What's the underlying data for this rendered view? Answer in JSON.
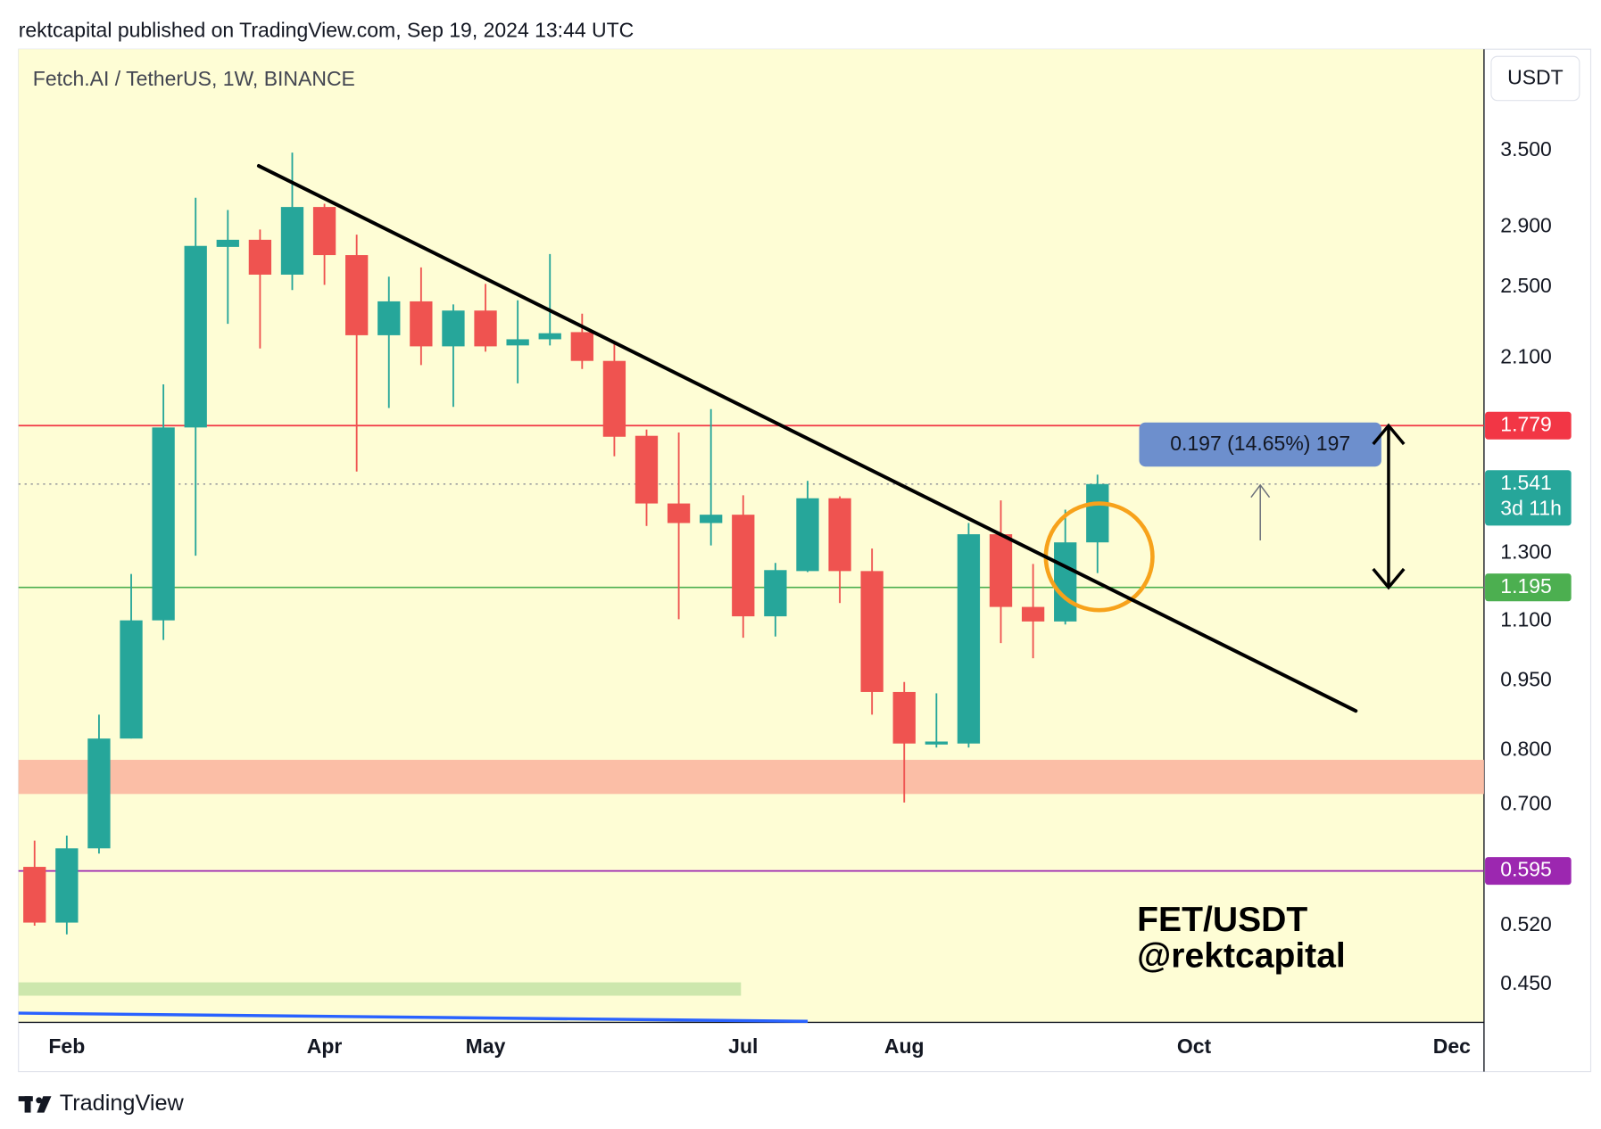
{
  "header": {
    "published": "rektcapital published on TradingView.com, Sep 19, 2024 13:44 UTC",
    "currency_button": "USDT",
    "brand": "TradingView"
  },
  "chart_data": {
    "type": "candlestick",
    "title": "Fetch.AI / TetherUS, 1W, BINANCE",
    "open": [
      0.601,
      0.524,
      0.629,
      0.824,
      1.102,
      1.771,
      2.761,
      2.81,
      2.579,
      3.046,
      2.706,
      2.222,
      2.415,
      2.162,
      2.361,
      2.167,
      2.2,
      2.239,
      2.086,
      1.735,
      1.469,
      1.4,
      1.429,
      1.113,
      1.244,
      1.488,
      1.244,
      0.924,
      0.812,
      0.814,
      1.362,
      1.139,
      1.099,
      1.335
    ],
    "high": [
      0.641,
      0.649,
      0.874,
      1.235,
      1.969,
      3.116,
      3.023,
      2.882,
      3.482,
      3.07,
      2.846,
      2.566,
      2.625,
      2.397,
      2.521,
      2.421,
      2.713,
      2.343,
      2.183,
      1.762,
      1.749,
      1.853,
      1.499,
      1.269,
      1.553,
      1.495,
      1.315,
      0.947,
      0.921,
      1.4,
      1.48,
      1.266,
      1.447,
      1.577
    ],
    "low": [
      0.52,
      0.509,
      0.621,
      0.824,
      1.05,
      1.292,
      2.285,
      2.151,
      2.483,
      2.515,
      1.589,
      1.858,
      2.065,
      1.863,
      2.134,
      1.974,
      2.167,
      2.045,
      1.65,
      1.39,
      1.105,
      1.325,
      1.056,
      1.059,
      1.241,
      1.15,
      0.874,
      0.704,
      0.806,
      0.806,
      1.042,
      1.004,
      1.091,
      1.238
    ],
    "close": [
      0.524,
      0.629,
      0.824,
      1.102,
      1.771,
      2.768,
      2.81,
      2.579,
      3.046,
      2.706,
      2.222,
      2.415,
      2.162,
      2.361,
      2.162,
      2.2,
      2.233,
      2.086,
      1.731,
      1.469,
      1.4,
      1.429,
      1.113,
      1.247,
      1.488,
      1.244,
      0.924,
      0.814,
      0.818,
      1.362,
      1.139,
      1.099,
      1.335,
      1.541
    ],
    "up_color": "#26a69a",
    "down_color": "#ef5350",
    "log_scale": true,
    "xlim": [
      -0.5,
      45
    ],
    "ylim": [
      0.41,
      4.49
    ],
    "xticks": [
      {
        "value": 1,
        "label": "Feb"
      },
      {
        "value": 9,
        "label": "Apr"
      },
      {
        "value": 14,
        "label": "May"
      },
      {
        "value": 22,
        "label": "Jul"
      },
      {
        "value": 27,
        "label": "Aug"
      },
      {
        "value": 36,
        "label": "Oct"
      },
      {
        "value": 44,
        "label": "Dec"
      }
    ],
    "yticks": [
      {
        "value": 3.5,
        "label": "3.500"
      },
      {
        "value": 2.9,
        "label": "2.900"
      },
      {
        "value": 2.5,
        "label": "2.500"
      },
      {
        "value": 2.1,
        "label": "2.100"
      },
      {
        "value": 1.3,
        "label": "1.300"
      },
      {
        "value": 1.1,
        "label": "1.100"
      },
      {
        "value": 0.95,
        "label": "0.950"
      },
      {
        "value": 0.8,
        "label": "0.800"
      },
      {
        "value": 0.7,
        "label": "0.700"
      },
      {
        "value": 0.52,
        "label": "0.520"
      },
      {
        "value": 0.45,
        "label": "0.450"
      }
    ],
    "levels": [
      {
        "value": 1.779,
        "color": "#f23645"
      },
      {
        "value": 1.541,
        "color": "#26a69a",
        "style": "dotted",
        "countdown": "3d 11h"
      },
      {
        "value": 1.195,
        "color": "#4caf50"
      },
      {
        "value": 0.595,
        "color": "#9c27b0"
      }
    ],
    "zone": {
      "range": [
        0.719,
        0.782
      ],
      "color": "#fbbea6"
    },
    "trendline": {
      "x": [
        6.96,
        41.02
      ],
      "y": [
        3.37,
        0.882
      ]
    },
    "measure": {
      "label": "0.197 (14.65%) 197"
    },
    "annotation": [
      "FET/USDT",
      "@rektcapital"
    ]
  }
}
